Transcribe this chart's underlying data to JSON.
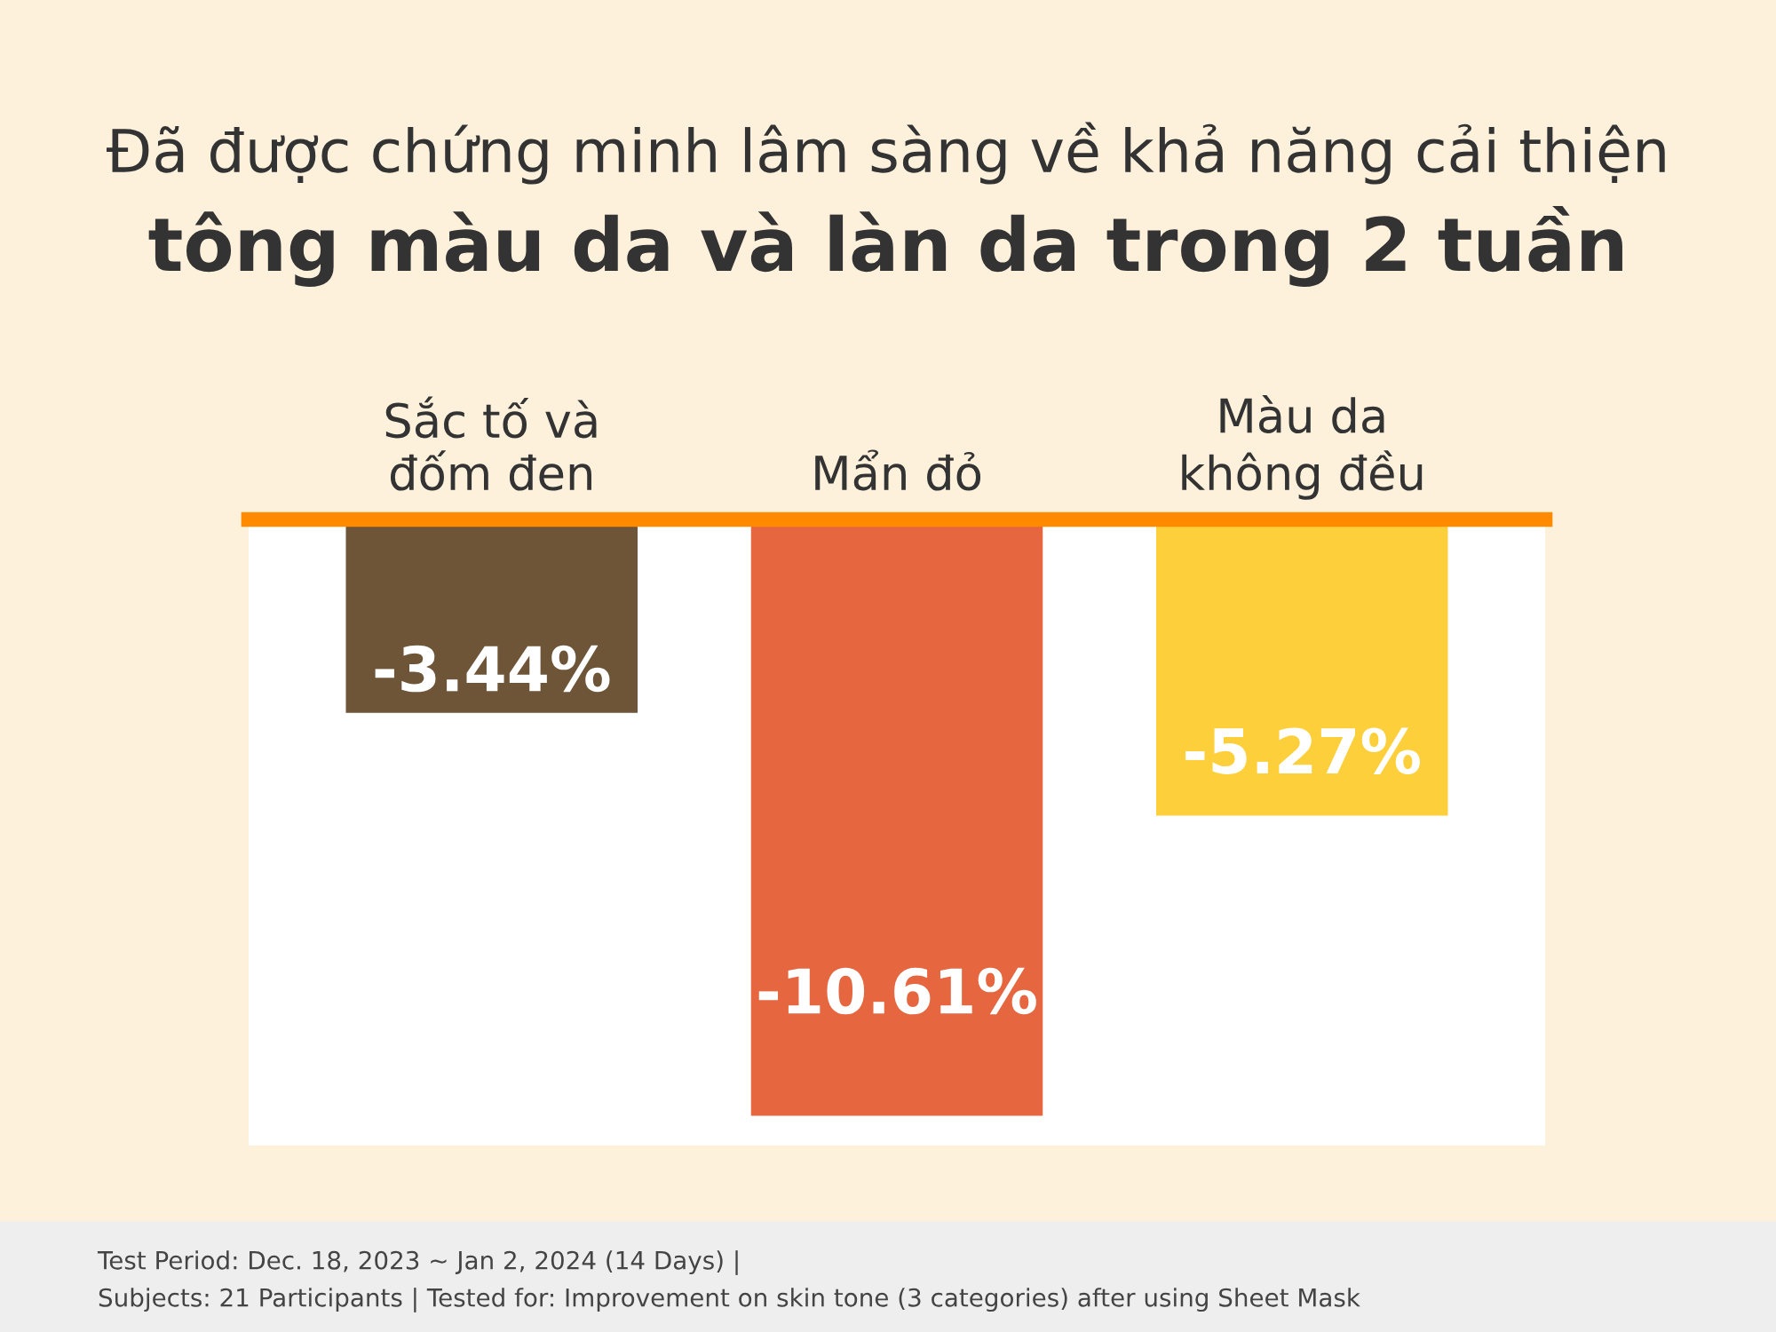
{
  "chart_data": {
    "type": "bar",
    "title": "Đã được chứng minh lâm sàng về khả năng cải thiện",
    "subtitle": "tông màu da và làn da trong 2 tuần",
    "categories": [
      "Sắc tố và\nđốm đen",
      "Mẩn đỏ",
      "Màu da\nkhông đều"
    ],
    "values": [
      -3.44,
      -10.61,
      -5.27
    ],
    "value_labels": [
      "-3.44%",
      "-10.61%",
      "-5.27%"
    ],
    "colors": [
      "#6e5538",
      "#e5663f",
      "#fdcf3a"
    ],
    "annotations": [
      "Test Period: Dec. 18, 2023 ~ Jan 2, 2024 (14 Days) |",
      "Subjects: 21 Participants | Tested for: Improvement on skin tone (3 categories) after using Sheet Mask"
    ]
  }
}
